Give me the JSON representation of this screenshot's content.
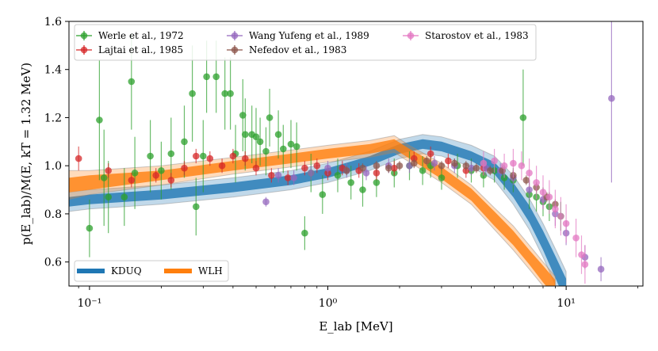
{
  "chart_data": {
    "type": "scatter",
    "xlabel": "E_lab [MeV]",
    "ylabel": "p(E_lab)/M(E, kT = 1.32 MeV)",
    "xscale": "log",
    "xlim": [
      0.082,
      21
    ],
    "ylim": [
      0.5,
      1.6
    ],
    "x_ticks": [
      {
        "value": 0.1,
        "label": "10⁻¹"
      },
      {
        "value": 1,
        "label": "10⁰"
      },
      {
        "value": 10,
        "label": "10¹"
      }
    ],
    "y_ticks": [
      {
        "value": 0.6,
        "label": "0.6"
      },
      {
        "value": 0.8,
        "label": "0.8"
      },
      {
        "value": 1.0,
        "label": "1.0"
      },
      {
        "value": 1.2,
        "label": "1.2"
      },
      {
        "value": 1.4,
        "label": "1.4"
      },
      {
        "value": 1.6,
        "label": "1.6"
      }
    ],
    "legend_top": [
      {
        "name": "Werle et al., 1972",
        "color": "#2ca02c"
      },
      {
        "name": "Lajtai et al., 1985",
        "color": "#d62728"
      },
      {
        "name": "Wang Yufeng et al., 1989",
        "color": "#9467bd"
      },
      {
        "name": "Nefedov et al., 1983",
        "color": "#8c564b"
      },
      {
        "name": "Starostov et al., 1983",
        "color": "#e377c2"
      }
    ],
    "legend_bottom": [
      {
        "name": "KDUQ",
        "color": "#1f77b4"
      },
      {
        "name": "WLH",
        "color": "#ff7f0e"
      }
    ],
    "bands": [
      {
        "name": "KDUQ",
        "color": "#1f77b4",
        "x": [
          0.082,
          0.1,
          0.2,
          0.4,
          0.7,
          1.0,
          1.5,
          2.0,
          2.5,
          3.0,
          4.0,
          5.0,
          6.0,
          7.0,
          8.0,
          9.0,
          10.0
        ],
        "y": [
          0.85,
          0.86,
          0.88,
          0.91,
          0.94,
          0.97,
          1.02,
          1.07,
          1.09,
          1.08,
          1.04,
          0.99,
          0.9,
          0.8,
          0.69,
          0.58,
          0.48
        ],
        "inner": [
          0.02,
          0.02,
          0.02,
          0.02,
          0.02,
          0.02,
          0.02,
          0.02,
          0.02,
          0.02,
          0.02,
          0.025,
          0.03,
          0.035,
          0.04,
          0.045,
          0.05
        ],
        "outer": [
          0.04,
          0.04,
          0.04,
          0.04,
          0.04,
          0.04,
          0.04,
          0.04,
          0.04,
          0.04,
          0.045,
          0.05,
          0.06,
          0.065,
          0.07,
          0.075,
          0.08
        ]
      },
      {
        "name": "WLH",
        "color": "#ff7f0e",
        "x": [
          0.082,
          0.1,
          0.2,
          0.4,
          0.7,
          1.0,
          1.5,
          1.9,
          2.2,
          3.0,
          4.0,
          5.0,
          6.0,
          7.0,
          8.0,
          9.0
        ],
        "y": [
          0.92,
          0.93,
          0.96,
          1.0,
          1.03,
          1.05,
          1.07,
          1.09,
          1.05,
          0.97,
          0.88,
          0.78,
          0.7,
          0.62,
          0.55,
          0.49
        ],
        "inner": [
          0.03,
          0.03,
          0.02,
          0.02,
          0.02,
          0.02,
          0.02,
          0.02,
          0.02,
          0.025,
          0.025,
          0.03,
          0.03,
          0.03,
          0.035,
          0.035
        ],
        "outer": [
          0.06,
          0.05,
          0.04,
          0.035,
          0.035,
          0.035,
          0.035,
          0.035,
          0.035,
          0.04,
          0.04,
          0.045,
          0.05,
          0.05,
          0.05,
          0.05
        ]
      }
    ],
    "series": [
      {
        "name": "Werle et al., 1972",
        "color": "#2ca02c",
        "points": [
          {
            "x": 0.1,
            "y": 0.74,
            "err": 0.12
          },
          {
            "x": 0.11,
            "y": 1.19,
            "err": 0.25
          },
          {
            "x": 0.115,
            "y": 0.95,
            "err": 0.2
          },
          {
            "x": 0.12,
            "y": 0.87,
            "err": 0.15
          },
          {
            "x": 0.14,
            "y": 0.87,
            "err": 0.12
          },
          {
            "x": 0.15,
            "y": 1.35,
            "err": 0.2
          },
          {
            "x": 0.155,
            "y": 0.97,
            "err": 0.15
          },
          {
            "x": 0.18,
            "y": 1.04,
            "err": 0.15
          },
          {
            "x": 0.2,
            "y": 0.98,
            "err": 0.12
          },
          {
            "x": 0.22,
            "y": 1.05,
            "err": 0.15
          },
          {
            "x": 0.25,
            "y": 1.1,
            "err": 0.15
          },
          {
            "x": 0.27,
            "y": 1.3,
            "err": 0.2
          },
          {
            "x": 0.28,
            "y": 0.83,
            "err": 0.12
          },
          {
            "x": 0.3,
            "y": 1.04,
            "err": 0.15
          },
          {
            "x": 0.31,
            "y": 1.37,
            "err": 0.15
          },
          {
            "x": 0.34,
            "y": 1.37,
            "err": 0.15
          },
          {
            "x": 0.37,
            "y": 1.3,
            "err": 0.15
          },
          {
            "x": 0.39,
            "y": 1.3,
            "err": 0.15
          },
          {
            "x": 0.41,
            "y": 1.05,
            "err": 0.12
          },
          {
            "x": 0.44,
            "y": 1.21,
            "err": 0.15
          },
          {
            "x": 0.45,
            "y": 1.13,
            "err": 0.15
          },
          {
            "x": 0.48,
            "y": 1.13,
            "err": 0.12
          },
          {
            "x": 0.5,
            "y": 1.12,
            "err": 0.12
          },
          {
            "x": 0.52,
            "y": 1.1,
            "err": 0.1
          },
          {
            "x": 0.55,
            "y": 1.06,
            "err": 0.1
          },
          {
            "x": 0.57,
            "y": 1.2,
            "err": 0.12
          },
          {
            "x": 0.62,
            "y": 1.13,
            "err": 0.1
          },
          {
            "x": 0.65,
            "y": 1.07,
            "err": 0.1
          },
          {
            "x": 0.7,
            "y": 1.09,
            "err": 0.1
          },
          {
            "x": 0.74,
            "y": 1.08,
            "err": 0.1
          },
          {
            "x": 0.8,
            "y": 0.72,
            "err": 0.07
          },
          {
            "x": 0.85,
            "y": 0.97,
            "err": 0.08
          },
          {
            "x": 0.95,
            "y": 0.88,
            "err": 0.08
          },
          {
            "x": 1.1,
            "y": 0.96,
            "err": 0.07
          },
          {
            "x": 1.25,
            "y": 0.93,
            "err": 0.07
          },
          {
            "x": 1.4,
            "y": 0.9,
            "err": 0.07
          },
          {
            "x": 1.6,
            "y": 0.93,
            "err": 0.06
          },
          {
            "x": 1.9,
            "y": 0.97,
            "err": 0.06
          },
          {
            "x": 2.2,
            "y": 1.0,
            "err": 0.06
          },
          {
            "x": 2.5,
            "y": 0.98,
            "err": 0.06
          },
          {
            "x": 2.7,
            "y": 1.0,
            "err": 0.05
          },
          {
            "x": 3.0,
            "y": 0.95,
            "err": 0.05
          },
          {
            "x": 3.5,
            "y": 1.0,
            "err": 0.05
          },
          {
            "x": 4.0,
            "y": 0.98,
            "err": 0.05
          },
          {
            "x": 4.5,
            "y": 0.96,
            "err": 0.05
          },
          {
            "x": 5.0,
            "y": 0.98,
            "err": 0.05
          },
          {
            "x": 5.5,
            "y": 0.95,
            "err": 0.05
          },
          {
            "x": 6.0,
            "y": 0.94,
            "err": 0.05
          },
          {
            "x": 6.6,
            "y": 1.2,
            "err": 0.2
          },
          {
            "x": 7.0,
            "y": 0.88,
            "err": 0.06
          },
          {
            "x": 7.5,
            "y": 0.87,
            "err": 0.06
          },
          {
            "x": 8.0,
            "y": 0.85,
            "err": 0.06
          },
          {
            "x": 8.5,
            "y": 0.83,
            "err": 0.06
          },
          {
            "x": 9.5,
            "y": 0.79,
            "err": 0.06
          }
        ]
      },
      {
        "name": "Lajtai et al., 1985",
        "color": "#d62728",
        "points": [
          {
            "x": 0.09,
            "y": 1.03,
            "err": 0.05
          },
          {
            "x": 0.12,
            "y": 0.98,
            "err": 0.03
          },
          {
            "x": 0.15,
            "y": 0.94,
            "err": 0.03
          },
          {
            "x": 0.19,
            "y": 0.96,
            "err": 0.03
          },
          {
            "x": 0.22,
            "y": 0.94,
            "err": 0.03
          },
          {
            "x": 0.25,
            "y": 0.99,
            "err": 0.03
          },
          {
            "x": 0.28,
            "y": 1.04,
            "err": 0.03
          },
          {
            "x": 0.32,
            "y": 1.03,
            "err": 0.03
          },
          {
            "x": 0.36,
            "y": 1.0,
            "err": 0.03
          },
          {
            "x": 0.4,
            "y": 1.04,
            "err": 0.03
          },
          {
            "x": 0.45,
            "y": 1.03,
            "err": 0.03
          },
          {
            "x": 0.5,
            "y": 0.99,
            "err": 0.03
          },
          {
            "x": 0.58,
            "y": 0.96,
            "err": 0.03
          },
          {
            "x": 0.68,
            "y": 0.95,
            "err": 0.03
          },
          {
            "x": 0.8,
            "y": 0.99,
            "err": 0.03
          },
          {
            "x": 0.9,
            "y": 1.0,
            "err": 0.03
          },
          {
            "x": 1.0,
            "y": 0.97,
            "err": 0.03
          },
          {
            "x": 1.15,
            "y": 0.99,
            "err": 0.03
          },
          {
            "x": 1.35,
            "y": 0.98,
            "err": 0.03
          },
          {
            "x": 1.6,
            "y": 0.97,
            "err": 0.03
          },
          {
            "x": 1.9,
            "y": 0.99,
            "err": 0.03
          },
          {
            "x": 2.3,
            "y": 1.03,
            "err": 0.03
          },
          {
            "x": 2.7,
            "y": 1.05,
            "err": 0.03
          },
          {
            "x": 3.2,
            "y": 1.02,
            "err": 0.03
          },
          {
            "x": 3.8,
            "y": 0.98,
            "err": 0.03
          },
          {
            "x": 4.5,
            "y": 0.99,
            "err": 0.03
          }
        ]
      },
      {
        "name": "Wang Yufeng et al., 1989",
        "color": "#9467bd",
        "points": [
          {
            "x": 0.55,
            "y": 0.85,
            "err": 0.02
          },
          {
            "x": 0.62,
            "y": 0.96,
            "err": 0.03
          },
          {
            "x": 0.72,
            "y": 0.95,
            "err": 0.03
          },
          {
            "x": 0.85,
            "y": 0.97,
            "err": 0.03
          },
          {
            "x": 1.0,
            "y": 0.99,
            "err": 0.03
          },
          {
            "x": 1.2,
            "y": 0.98,
            "err": 0.03
          },
          {
            "x": 1.45,
            "y": 0.97,
            "err": 0.03
          },
          {
            "x": 1.8,
            "y": 1.0,
            "err": 0.03
          },
          {
            "x": 2.2,
            "y": 1.0,
            "err": 0.03
          },
          {
            "x": 2.8,
            "y": 1.01,
            "err": 0.03
          },
          {
            "x": 3.4,
            "y": 1.0,
            "err": 0.03
          },
          {
            "x": 4.0,
            "y": 0.99,
            "err": 0.03
          },
          {
            "x": 4.6,
            "y": 0.99,
            "err": 0.03
          },
          {
            "x": 5.3,
            "y": 0.98,
            "err": 0.03
          },
          {
            "x": 6.0,
            "y": 0.95,
            "err": 0.03
          },
          {
            "x": 7.0,
            "y": 0.9,
            "err": 0.04
          },
          {
            "x": 8.0,
            "y": 0.86,
            "err": 0.04
          },
          {
            "x": 9.0,
            "y": 0.8,
            "err": 0.05
          },
          {
            "x": 10.0,
            "y": 0.72,
            "err": 0.05
          },
          {
            "x": 12.0,
            "y": 0.62,
            "err": 0.05
          },
          {
            "x": 14.0,
            "y": 0.57,
            "err": 0.05
          },
          {
            "x": 15.5,
            "y": 1.28,
            "err": 0.35
          }
        ]
      },
      {
        "name": "Nefedov et al., 1983",
        "color": "#8c564b",
        "points": [
          {
            "x": 1.2,
            "y": 0.98,
            "err": 0.02
          },
          {
            "x": 1.4,
            "y": 0.99,
            "err": 0.02
          },
          {
            "x": 1.6,
            "y": 1.0,
            "err": 0.02
          },
          {
            "x": 1.8,
            "y": 0.99,
            "err": 0.02
          },
          {
            "x": 2.0,
            "y": 1.0,
            "err": 0.02
          },
          {
            "x": 2.3,
            "y": 1.01,
            "err": 0.02
          },
          {
            "x": 2.6,
            "y": 1.02,
            "err": 0.02
          },
          {
            "x": 3.0,
            "y": 1.0,
            "err": 0.02
          },
          {
            "x": 3.4,
            "y": 1.01,
            "err": 0.02
          },
          {
            "x": 3.8,
            "y": 1.0,
            "err": 0.02
          },
          {
            "x": 4.2,
            "y": 0.99,
            "err": 0.02
          },
          {
            "x": 4.8,
            "y": 0.98,
            "err": 0.02
          },
          {
            "x": 5.4,
            "y": 0.98,
            "err": 0.02
          },
          {
            "x": 6.0,
            "y": 0.96,
            "err": 0.02
          },
          {
            "x": 6.8,
            "y": 0.94,
            "err": 0.02
          },
          {
            "x": 7.5,
            "y": 0.91,
            "err": 0.02
          },
          {
            "x": 8.3,
            "y": 0.87,
            "err": 0.02
          },
          {
            "x": 9.0,
            "y": 0.84,
            "err": 0.02
          }
        ]
      },
      {
        "name": "Starostov et al., 1983",
        "color": "#e377c2",
        "points": [
          {
            "x": 4.5,
            "y": 1.01,
            "err": 0.05
          },
          {
            "x": 5.0,
            "y": 1.02,
            "err": 0.05
          },
          {
            "x": 5.5,
            "y": 1.0,
            "err": 0.05
          },
          {
            "x": 6.0,
            "y": 1.01,
            "err": 0.06
          },
          {
            "x": 6.5,
            "y": 1.0,
            "err": 0.06
          },
          {
            "x": 7.0,
            "y": 0.97,
            "err": 0.06
          },
          {
            "x": 7.5,
            "y": 0.93,
            "err": 0.07
          },
          {
            "x": 8.0,
            "y": 0.89,
            "err": 0.07
          },
          {
            "x": 8.5,
            "y": 0.87,
            "err": 0.07
          },
          {
            "x": 9.0,
            "y": 0.82,
            "err": 0.08
          },
          {
            "x": 9.5,
            "y": 0.79,
            "err": 0.08
          },
          {
            "x": 10.0,
            "y": 0.76,
            "err": 0.08
          },
          {
            "x": 11.0,
            "y": 0.7,
            "err": 0.08
          },
          {
            "x": 11.6,
            "y": 0.63,
            "err": 0.08
          },
          {
            "x": 12.0,
            "y": 0.59,
            "err": 0.08
          }
        ]
      }
    ]
  }
}
